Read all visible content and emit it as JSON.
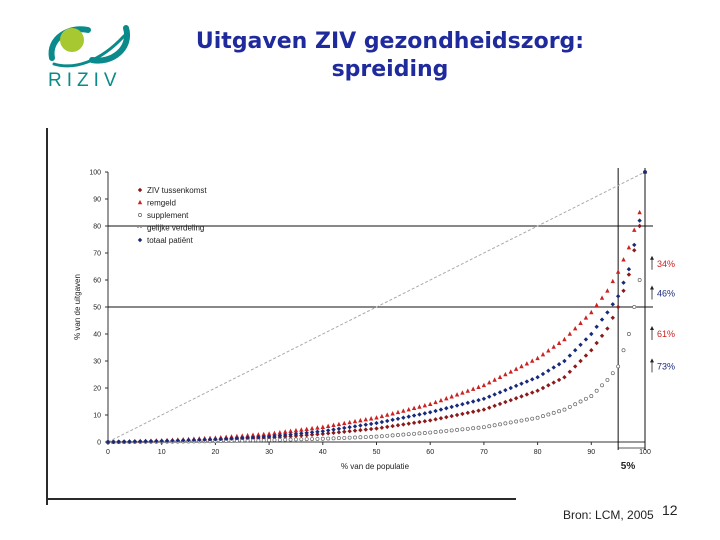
{
  "header": {
    "title_line1": "Uitgaven ZIV gezondheidszorg:",
    "title_line2": "spreiding",
    "logo_text": "RIZIV"
  },
  "footer": {
    "source": "Bron: LCM, 2005",
    "page_number": "12"
  },
  "colors": {
    "title": "#1f2a9c",
    "logo_teal": "#0a8a8a",
    "logo_green": "#a8c832",
    "ziv": "#8b1a1a",
    "remgeld": "#cc2222",
    "supplement": "#666666",
    "equal": "#aaaaaa",
    "total": "#1a2a7a"
  },
  "chart_data": {
    "type": "line",
    "xlabel": "% van de populatie",
    "ylabel": "% van de uitgaven",
    "xlim": [
      0,
      100
    ],
    "ylim": [
      0,
      100
    ],
    "xticks": [
      "0",
      "10",
      "20",
      "30",
      "40",
      "50",
      "60",
      "70",
      "80",
      "90",
      "100"
    ],
    "yticks": [
      "0",
      "10",
      "20",
      "30",
      "40",
      "50",
      "60",
      "70",
      "80",
      "90",
      "100"
    ],
    "legend_position": "top-left",
    "legend": [
      {
        "name": "ZIV tussenkomst",
        "marker": "diamond",
        "color": "#8b1a1a"
      },
      {
        "name": "remgeld",
        "marker": "triangle",
        "color": "#cc2222"
      },
      {
        "name": "supplement",
        "marker": "circle-open",
        "color": "#666666"
      },
      {
        "name": "gelijke verdeling",
        "marker": "dash",
        "color": "#aaaaaa"
      },
      {
        "name": "totaal patiënt",
        "marker": "diamond",
        "color": "#1a2a7a"
      }
    ],
    "series": [
      {
        "name": "ZIV tussenkomst",
        "x": [
          0,
          10,
          20,
          30,
          40,
          50,
          60,
          70,
          80,
          85,
          90,
          93,
          95,
          97,
          99,
          100
        ],
        "y": [
          0,
          0.3,
          0.8,
          1.5,
          3,
          5,
          8,
          12,
          19,
          24,
          34,
          42,
          50,
          62,
          80,
          100
        ]
      },
      {
        "name": "remgeld",
        "x": [
          0,
          10,
          20,
          30,
          40,
          50,
          60,
          70,
          80,
          85,
          90,
          93,
          95,
          97,
          99,
          100
        ],
        "y": [
          0,
          0.5,
          1.5,
          3,
          5.5,
          9,
          14,
          21,
          31,
          38,
          48,
          56,
          63,
          72,
          85,
          100
        ]
      },
      {
        "name": "supplement",
        "x": [
          0,
          10,
          20,
          30,
          40,
          50,
          60,
          70,
          80,
          85,
          90,
          93,
          95,
          97,
          99,
          100
        ],
        "y": [
          0,
          0.1,
          0.3,
          0.7,
          1.2,
          2,
          3.5,
          5.5,
          9,
          12,
          17,
          23,
          28,
          40,
          60,
          100
        ]
      },
      {
        "name": "gelijke verdeling",
        "x": [
          0,
          100
        ],
        "y": [
          0,
          100
        ]
      },
      {
        "name": "totaal patiënt",
        "x": [
          0,
          10,
          20,
          30,
          40,
          50,
          60,
          70,
          80,
          85,
          90,
          93,
          95,
          97,
          99,
          100
        ],
        "y": [
          0,
          0.4,
          1,
          2,
          4,
          7,
          11,
          16,
          24,
          30,
          40,
          48,
          54,
          64,
          82,
          100
        ]
      }
    ],
    "reference_lines": {
      "horizontal_y": [
        50,
        80
      ],
      "vertical_x": [
        95,
        100
      ]
    },
    "annotations": [
      {
        "text": "34%",
        "y": 66,
        "color": "#cc2222"
      },
      {
        "text": "46%",
        "y": 55,
        "color": "#1a2a7a"
      },
      {
        "text": "61%",
        "y": 40,
        "color": "#cc2222"
      },
      {
        "text": "73%",
        "y": 28,
        "color": "#1a2a7a"
      }
    ],
    "bottom_label": "5%"
  }
}
